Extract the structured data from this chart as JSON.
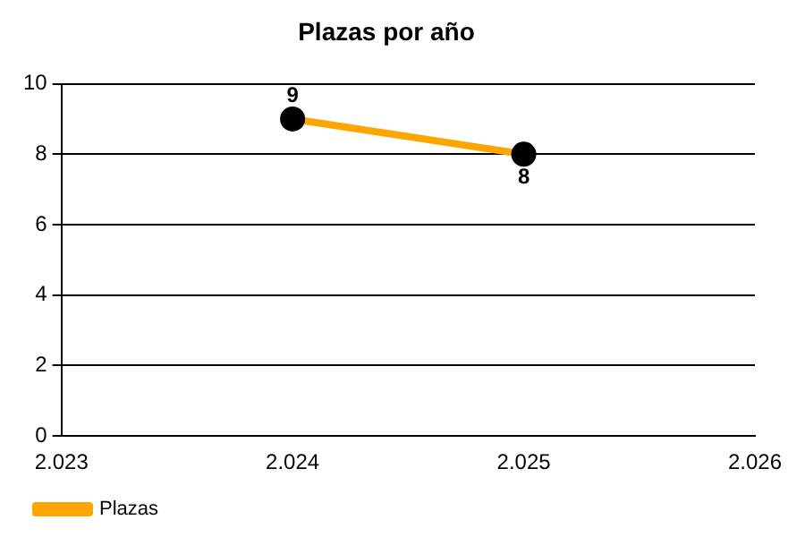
{
  "chart_data": {
    "type": "line",
    "title": "Plazas por año",
    "x": [
      2024,
      2025
    ],
    "series": [
      {
        "name": "Plazas",
        "color": "#ffa500",
        "values": [
          9,
          8
        ]
      }
    ],
    "xlim": [
      2023,
      2026
    ],
    "xticks": [
      {
        "value": 2023,
        "label": "2.023"
      },
      {
        "value": 2024,
        "label": "2.024"
      },
      {
        "value": 2025,
        "label": "2.025"
      },
      {
        "value": 2026,
        "label": "2.026"
      }
    ],
    "ylim": [
      0,
      10
    ],
    "yticks": [
      0,
      2,
      4,
      6,
      8,
      10
    ],
    "grid": "y",
    "legend": "bottom left",
    "marker": "circle",
    "line_style": "solid",
    "data_labels": true
  }
}
